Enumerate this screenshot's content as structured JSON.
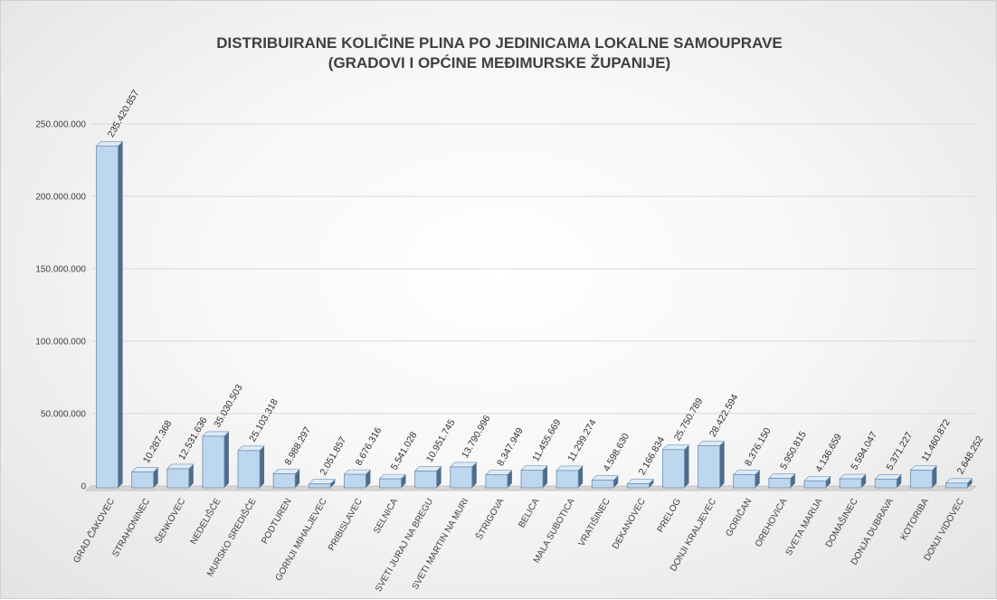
{
  "chart_data": {
    "type": "bar",
    "title_line1": "DISTRIBUIRANE KOLIČINE PLINA PO JEDINICAMA LOKALNE SAMOUPRAVE",
    "title_line2": "(GRADOVI I OPĆINE MEĐIMURSKE ŽUPANIJE)",
    "xlabel": "",
    "ylabel": "",
    "ylim": [
      0,
      250000000
    ],
    "yticks": [
      0,
      50000000,
      100000000,
      150000000,
      200000000,
      250000000
    ],
    "ytick_labels": [
      "0",
      "50.000.000",
      "100.000.000",
      "150.000.000",
      "200.000.000",
      "250.000.000"
    ],
    "grid": true,
    "legend": "none",
    "bar_color": "#bdd7ee",
    "bar_side_color": "#4f6d8a",
    "bar_border_color": "#6f8fb0",
    "categories": [
      "GRAD ČAKOVEC",
      "STRAHONINEC",
      "ŠENKOVEC",
      "NEDELIŠĆE",
      "MURSKO SREDIŠĆE",
      "PODTUREN",
      "GORNJI MIHALJEVEC",
      "PRIBISLAVEC",
      "SELNICA",
      "SVETI JURAJ NA BREGU",
      "SVETI MARTIN NA MURI",
      "ŠTRIGOVA",
      "BELICA",
      "MALA SUBOTICA",
      "VRATIŠINEC",
      "DEKANOVEC",
      "PRELOG",
      "DONJI KRALJEVEC",
      "GORIČAN",
      "OREHOVICA",
      "SVETA MARIJA",
      "DOMAŠINEC",
      "DONJA DUBRAVA",
      "KOTORIBA",
      "DONJI VIDOVEC"
    ],
    "values": [
      235420857,
      10287368,
      12531636,
      35030503,
      25103318,
      8988297,
      2051857,
      8676316,
      5541028,
      10951745,
      13790996,
      8347949,
      11455669,
      11299274,
      4598630,
      2166834,
      25750789,
      28422594,
      8376150,
      5950815,
      4136659,
      5594047,
      5371227,
      11460872,
      2648252
    ],
    "value_labels": [
      "235.420.857",
      "10.287.368",
      "12.531.636",
      "35.030.503",
      "25.103.318",
      "8.988.297",
      "2.051.857",
      "8.676.316",
      "5.541.028",
      "10.951.745",
      "13.790.996",
      "8.347.949",
      "11.455.669",
      "11.299.274",
      "4.598.630",
      "2.166.834",
      "25.750.789",
      "28.422.594",
      "8.376.150",
      "5.950.815",
      "4.136.659",
      "5.594.047",
      "5.371.227",
      "11.460.872",
      "2.648.252"
    ]
  }
}
